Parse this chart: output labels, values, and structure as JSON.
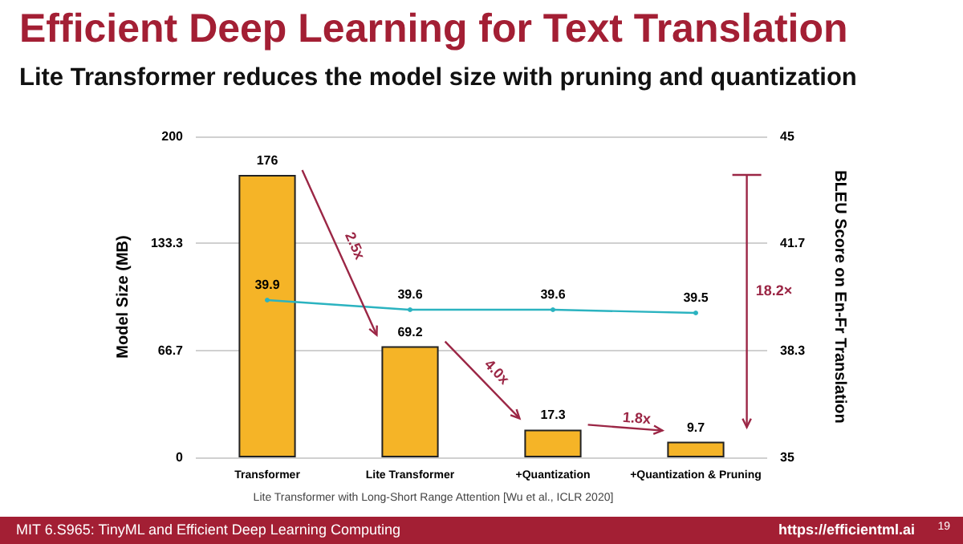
{
  "chart_data": {
    "type": "bar",
    "title": "Efficient Deep Learning for Text Translation",
    "subtitle": "Lite Transformer reduces the model size with pruning and quantization",
    "ylabel": "Model Size (MB)",
    "y2label": "BLEU Score on En-Fr Translation",
    "categories": [
      "Transformer",
      "Lite Transformer",
      "+Quantization",
      "+Quantization & Pruning"
    ],
    "series": [
      {
        "color": "#f5b427",
        "values": [
          176,
          69.2,
          17.3,
          9.7
        ]
      },
      {
        "type": "line",
        "axis": "y2",
        "color": "#2bb3c0",
        "values": [
          39.9,
          39.6,
          39.6,
          39.5
        ]
      }
    ],
    "ylim": [
      0,
      200
    ],
    "yticks": [
      0,
      {
        "value": 66.667,
        "label": "66.7"
      },
      {
        "value": 133.333,
        "label": "133.3"
      },
      200
    ],
    "y2lim": [
      35,
      45
    ],
    "y2ticks": [
      35,
      {
        "value": 38.333,
        "label": "38.3"
      },
      {
        "value": 41.667,
        "label": "41.7"
      },
      45
    ],
    "grid": "y",
    "marker": "circle",
    "line_style": "solid",
    "data_labels": true,
    "annotations": [
      "2.5x",
      "4.0x",
      "1.8x",
      "18.2×",
      "Lite Transformer with Long-Short Range Attention [Wu et al., ICLR 2020]",
      "MIT 6.S965: TinyML and Efficient Deep Learning Computing",
      "https://efficientml.ai",
      "19"
    ]
  }
}
